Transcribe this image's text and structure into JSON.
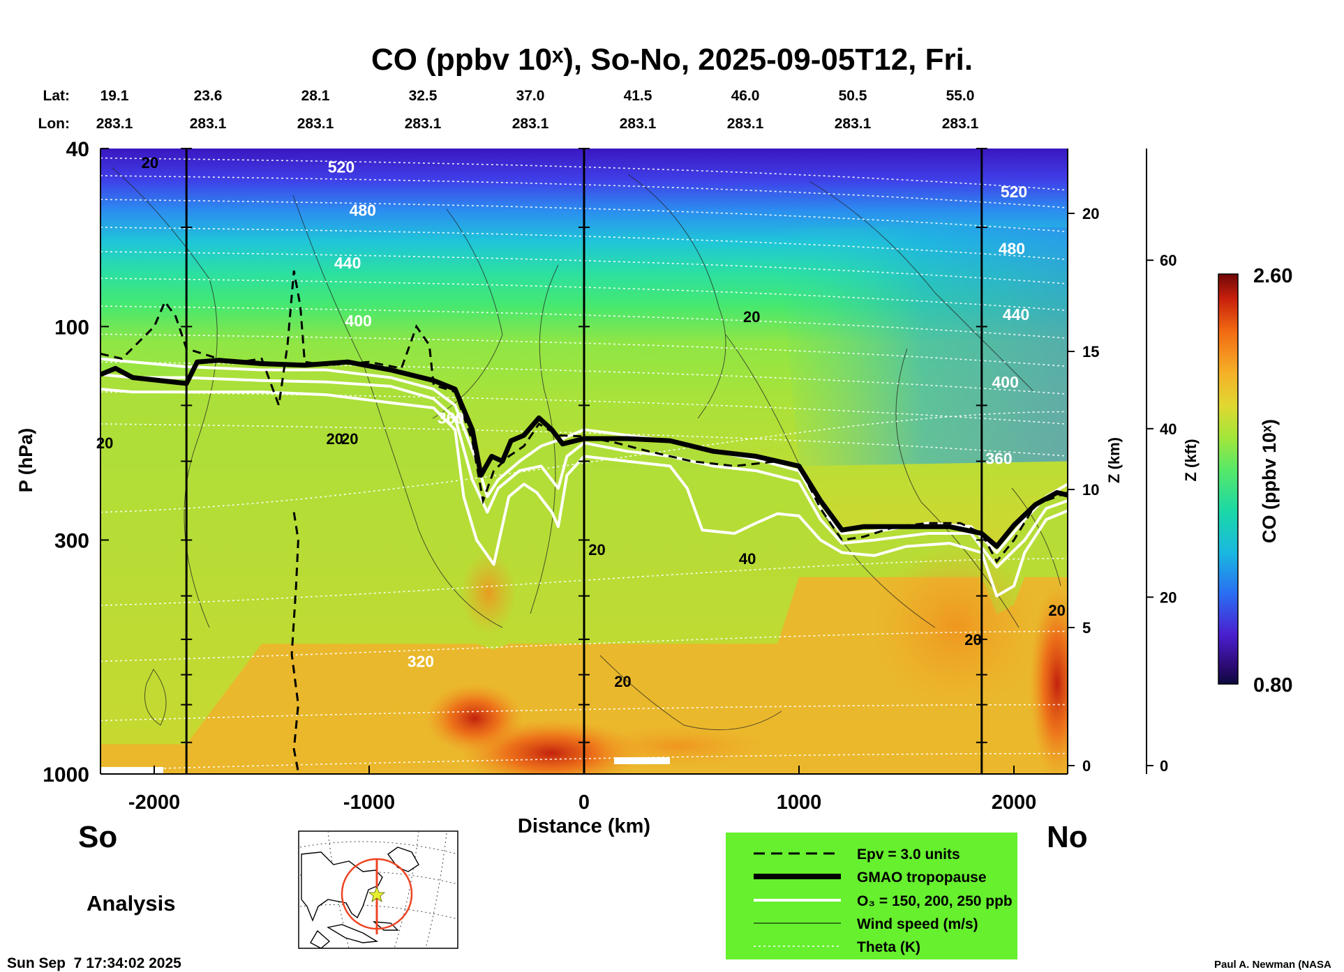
{
  "chart_data": {
    "type": "heatmap",
    "title": "CO (ppbv 10ˣ), So-No, 2025-09-05T12, Fri.",
    "xlabel": "Distance (km)",
    "ylabel": "P (hPa)",
    "y2label": "Z (km)",
    "y3label": "Z (kft)",
    "colorbar_label": "CO (ppbv 10ˣ)",
    "xlim": [
      -2250,
      2250
    ],
    "ylim": [
      1000,
      40
    ],
    "y_scale": "log",
    "x_ticks": [
      -2000,
      -1000,
      0,
      1000,
      2000
    ],
    "y_ticks": [
      40,
      100,
      300,
      1000
    ],
    "z_km_ticks": [
      0,
      5,
      10,
      15,
      20
    ],
    "z_kft_ticks": [
      0,
      20,
      40,
      60
    ],
    "colorbar": {
      "min": 0.8,
      "max": 2.6,
      "min_label": "0.80",
      "max_label": "2.60"
    },
    "lat_label": "Lat:",
    "lon_label": "Lon:",
    "lat": [
      "19.1",
      "23.6",
      "28.1",
      "32.5",
      "37.0",
      "41.5",
      "46.0",
      "50.5",
      "55.0"
    ],
    "lon": [
      "283.1",
      "283.1",
      "283.1",
      "283.1",
      "283.1",
      "283.1",
      "283.1",
      "283.1",
      "283.1"
    ],
    "latlon_x_km": [
      -2250,
      -1750,
      -1250,
      -750,
      -250,
      250,
      750,
      1250,
      1750
    ],
    "vertical_lines_km": [
      -1850,
      0,
      1850
    ],
    "theta_labels": [
      {
        "text": "520",
        "x": -1130,
        "p": 44
      },
      {
        "text": "480",
        "x": -1030,
        "p": 55
      },
      {
        "text": "440",
        "x": -1100,
        "p": 72
      },
      {
        "text": "400",
        "x": -1050,
        "p": 97
      },
      {
        "text": "320",
        "x": -760,
        "p": 560
      },
      {
        "text": "520",
        "x": 2000,
        "p": 50
      },
      {
        "text": "480",
        "x": 1990,
        "p": 67
      },
      {
        "text": "440",
        "x": 2010,
        "p": 94
      },
      {
        "text": "400",
        "x": 1960,
        "p": 133
      },
      {
        "text": "360",
        "x": 1930,
        "p": 197
      },
      {
        "text": "360",
        "x": -620,
        "p": 160
      }
    ],
    "wind_labels": [
      {
        "text": "20",
        "x": -2020,
        "p": 43
      },
      {
        "text": "20",
        "x": 780,
        "p": 95
      },
      {
        "text": "20",
        "x": -2230,
        "p": 182
      },
      {
        "text": "20",
        "x": -1160,
        "p": 178
      },
      {
        "text": "20",
        "x": -1090,
        "p": 178
      },
      {
        "text": "20",
        "x": 60,
        "p": 315
      },
      {
        "text": "40",
        "x": 760,
        "p": 330
      },
      {
        "text": "20",
        "x": 180,
        "p": 620
      },
      {
        "text": "20",
        "x": 1810,
        "p": 500
      },
      {
        "text": "20",
        "x": 2200,
        "p": 430
      }
    ],
    "tropopause_p": [
      [
        -2250,
        128
      ],
      [
        -2180,
        124
      ],
      [
        -2100,
        130
      ],
      [
        -1850,
        134
      ],
      [
        -1800,
        120
      ],
      [
        -1700,
        119
      ],
      [
        -1500,
        121
      ],
      [
        -1300,
        122
      ],
      [
        -1100,
        120
      ],
      [
        -900,
        125
      ],
      [
        -700,
        132
      ],
      [
        -600,
        138
      ],
      [
        -520,
        170
      ],
      [
        -480,
        215
      ],
      [
        -430,
        195
      ],
      [
        -380,
        200
      ],
      [
        -340,
        180
      ],
      [
        -280,
        175
      ],
      [
        -210,
        160
      ],
      [
        -150,
        170
      ],
      [
        -100,
        183
      ],
      [
        0,
        178
      ],
      [
        200,
        178
      ],
      [
        400,
        180
      ],
      [
        600,
        190
      ],
      [
        800,
        195
      ],
      [
        1000,
        205
      ],
      [
        1100,
        245
      ],
      [
        1200,
        285
      ],
      [
        1300,
        280
      ],
      [
        1500,
        280
      ],
      [
        1700,
        280
      ],
      [
        1850,
        290
      ],
      [
        1920,
        310
      ],
      [
        2000,
        278
      ],
      [
        2100,
        250
      ],
      [
        2200,
        235
      ],
      [
        2250,
        238
      ]
    ],
    "epv_p": [
      [
        -2250,
        115
      ],
      [
        -2150,
        118
      ],
      [
        -2000,
        100
      ],
      [
        -1950,
        88
      ],
      [
        -1900,
        95
      ],
      [
        -1850,
        112
      ],
      [
        -1700,
        118
      ],
      [
        -1600,
        120
      ],
      [
        -1500,
        118
      ],
      [
        -1420,
        150
      ],
      [
        -1380,
        110
      ],
      [
        -1350,
        75
      ],
      [
        -1320,
        90
      ],
      [
        -1300,
        120
      ],
      [
        -1200,
        122
      ],
      [
        -1000,
        120
      ],
      [
        -850,
        124
      ],
      [
        -780,
        100
      ],
      [
        -720,
        110
      ],
      [
        -700,
        135
      ],
      [
        -600,
        140
      ],
      [
        -520,
        180
      ],
      [
        -470,
        245
      ],
      [
        -420,
        210
      ],
      [
        -350,
        195
      ],
      [
        -280,
        185
      ],
      [
        -210,
        165
      ],
      [
        -120,
        175
      ],
      [
        0,
        176
      ],
      [
        150,
        182
      ],
      [
        300,
        190
      ],
      [
        500,
        200
      ],
      [
        700,
        205
      ],
      [
        900,
        200
      ],
      [
        1000,
        205
      ],
      [
        1100,
        255
      ],
      [
        1200,
        300
      ],
      [
        1300,
        295
      ],
      [
        1450,
        280
      ],
      [
        1600,
        275
      ],
      [
        1750,
        275
      ],
      [
        1850,
        290
      ],
      [
        1920,
        335
      ],
      [
        2000,
        300
      ],
      [
        2100,
        250
      ],
      [
        2250,
        235
      ]
    ],
    "epv_p_low": [
      [
        -1350,
        260
      ],
      [
        -1330,
        300
      ],
      [
        -1340,
        380
      ],
      [
        -1360,
        540
      ],
      [
        -1330,
        700
      ],
      [
        -1350,
        880
      ],
      [
        -1330,
        990
      ]
    ],
    "o3_150_p": [
      [
        -2250,
        118
      ],
      [
        -2100,
        120
      ],
      [
        -1850,
        123
      ],
      [
        -1500,
        125
      ],
      [
        -1200,
        125
      ],
      [
        -900,
        130
      ],
      [
        -700,
        138
      ],
      [
        -600,
        150
      ],
      [
        -500,
        200
      ],
      [
        -450,
        240
      ],
      [
        -400,
        220
      ],
      [
        -300,
        200
      ],
      [
        -200,
        185
      ],
      [
        -100,
        178
      ],
      [
        0,
        170
      ],
      [
        200,
        175
      ],
      [
        400,
        180
      ],
      [
        600,
        190
      ],
      [
        800,
        198
      ],
      [
        1000,
        210
      ],
      [
        1100,
        255
      ],
      [
        1200,
        290
      ],
      [
        1400,
        285
      ],
      [
        1600,
        275
      ],
      [
        1800,
        280
      ],
      [
        1920,
        320
      ],
      [
        2050,
        270
      ],
      [
        2150,
        240
      ],
      [
        2250,
        225
      ]
    ],
    "o3_200_p": [
      [
        -2250,
        128
      ],
      [
        -2100,
        130
      ],
      [
        -1850,
        130
      ],
      [
        -1500,
        132
      ],
      [
        -1200,
        133
      ],
      [
        -900,
        136
      ],
      [
        -700,
        145
      ],
      [
        -600,
        160
      ],
      [
        -520,
        220
      ],
      [
        -450,
        260
      ],
      [
        -400,
        230
      ],
      [
        -300,
        210
      ],
      [
        -200,
        205
      ],
      [
        -120,
        230
      ],
      [
        -80,
        195
      ],
      [
        0,
        182
      ],
      [
        200,
        190
      ],
      [
        400,
        195
      ],
      [
        600,
        205
      ],
      [
        800,
        210
      ],
      [
        1000,
        222
      ],
      [
        1100,
        270
      ],
      [
        1200,
        305
      ],
      [
        1350,
        300
      ],
      [
        1600,
        290
      ],
      [
        1800,
        290
      ],
      [
        1920,
        345
      ],
      [
        2050,
        300
      ],
      [
        2150,
        255
      ],
      [
        2250,
        245
      ]
    ],
    "o3_250_p": [
      [
        -2250,
        138
      ],
      [
        -2100,
        140
      ],
      [
        -1850,
        140
      ],
      [
        -1500,
        140
      ],
      [
        -1200,
        142
      ],
      [
        -900,
        148
      ],
      [
        -700,
        152
      ],
      [
        -600,
        170
      ],
      [
        -560,
        240
      ],
      [
        -500,
        300
      ],
      [
        -420,
        340
      ],
      [
        -350,
        240
      ],
      [
        -280,
        225
      ],
      [
        -220,
        235
      ],
      [
        -150,
        260
      ],
      [
        -120,
        280
      ],
      [
        -80,
        215
      ],
      [
        0,
        195
      ],
      [
        200,
        200
      ],
      [
        400,
        205
      ],
      [
        480,
        230
      ],
      [
        550,
        285
      ],
      [
        700,
        290
      ],
      [
        800,
        275
      ],
      [
        900,
        262
      ],
      [
        1000,
        265
      ],
      [
        1100,
        300
      ],
      [
        1200,
        320
      ],
      [
        1350,
        325
      ],
      [
        1500,
        310
      ],
      [
        1700,
        305
      ],
      [
        1850,
        320
      ],
      [
        1920,
        400
      ],
      [
        2000,
        380
      ],
      [
        2050,
        320
      ],
      [
        2150,
        270
      ],
      [
        2250,
        258
      ]
    ]
  },
  "labels": {
    "so": "So",
    "no": "No",
    "analysis": "Analysis",
    "timestamp": "Sun Sep  7 17:34:02 2025",
    "credit": "Paul A. Newman (NASA"
  },
  "legend": {
    "epv": "Epv = 3.0 units",
    "tropopause": "GMAO tropopause",
    "o3": "O₃ = 150, 200, 250 ppb",
    "wind": "Wind speed (m/s)",
    "theta": "Theta (K)",
    "background": "#66f02e"
  }
}
